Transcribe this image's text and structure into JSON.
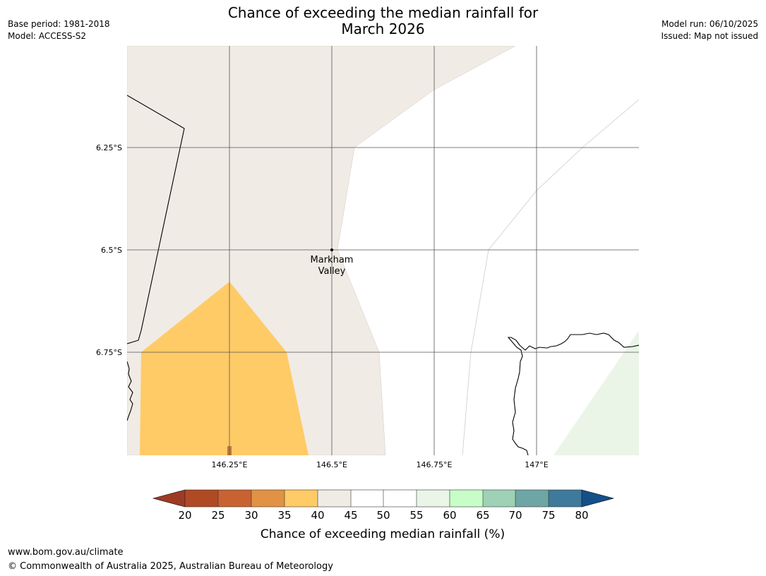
{
  "header": {
    "title_line1": "Chance of exceeding the median rainfall for",
    "title_line2": "March 2026",
    "base_period": "Base period: 1981-2018",
    "model": "Model: ACCESS-S2",
    "model_run": "Model run: 06/10/2025",
    "issued": "Issued: Map not issued"
  },
  "map": {
    "lat_labels": [
      "6.25°S",
      "6.5°S",
      "6.75°S"
    ],
    "lon_labels": [
      "146.25°E",
      "146.5°E",
      "146.75°E",
      "147°E"
    ],
    "place": {
      "name_line1": "Markham",
      "name_line2": "Valley"
    },
    "colors": {
      "land_neutral": "#f0ebe5",
      "dry_35_40": "#ffcb66",
      "wet_55_60": "#eaf5e8",
      "grid": "#555555"
    }
  },
  "colorbar": {
    "ticks": [
      "20",
      "25",
      "30",
      "35",
      "40",
      "45",
      "50",
      "55",
      "60",
      "65",
      "70",
      "75",
      "80"
    ],
    "colors": [
      "#9e3b24",
      "#b04a25",
      "#c96232",
      "#e19244",
      "#ffcb66",
      "#f0ebe5",
      "#ffffff",
      "#ffffff",
      "#eaf5e8",
      "#c8fdc8",
      "#9fd1b7",
      "#6ea6a5",
      "#3e7a9c",
      "#144f8a"
    ],
    "label": "Chance of exceeding median rainfall (%)"
  },
  "footer": {
    "url": "www.bom.gov.au/climate",
    "copyright": "© Commonwealth of Australia 2025, Australian Bureau of Meteorology"
  }
}
